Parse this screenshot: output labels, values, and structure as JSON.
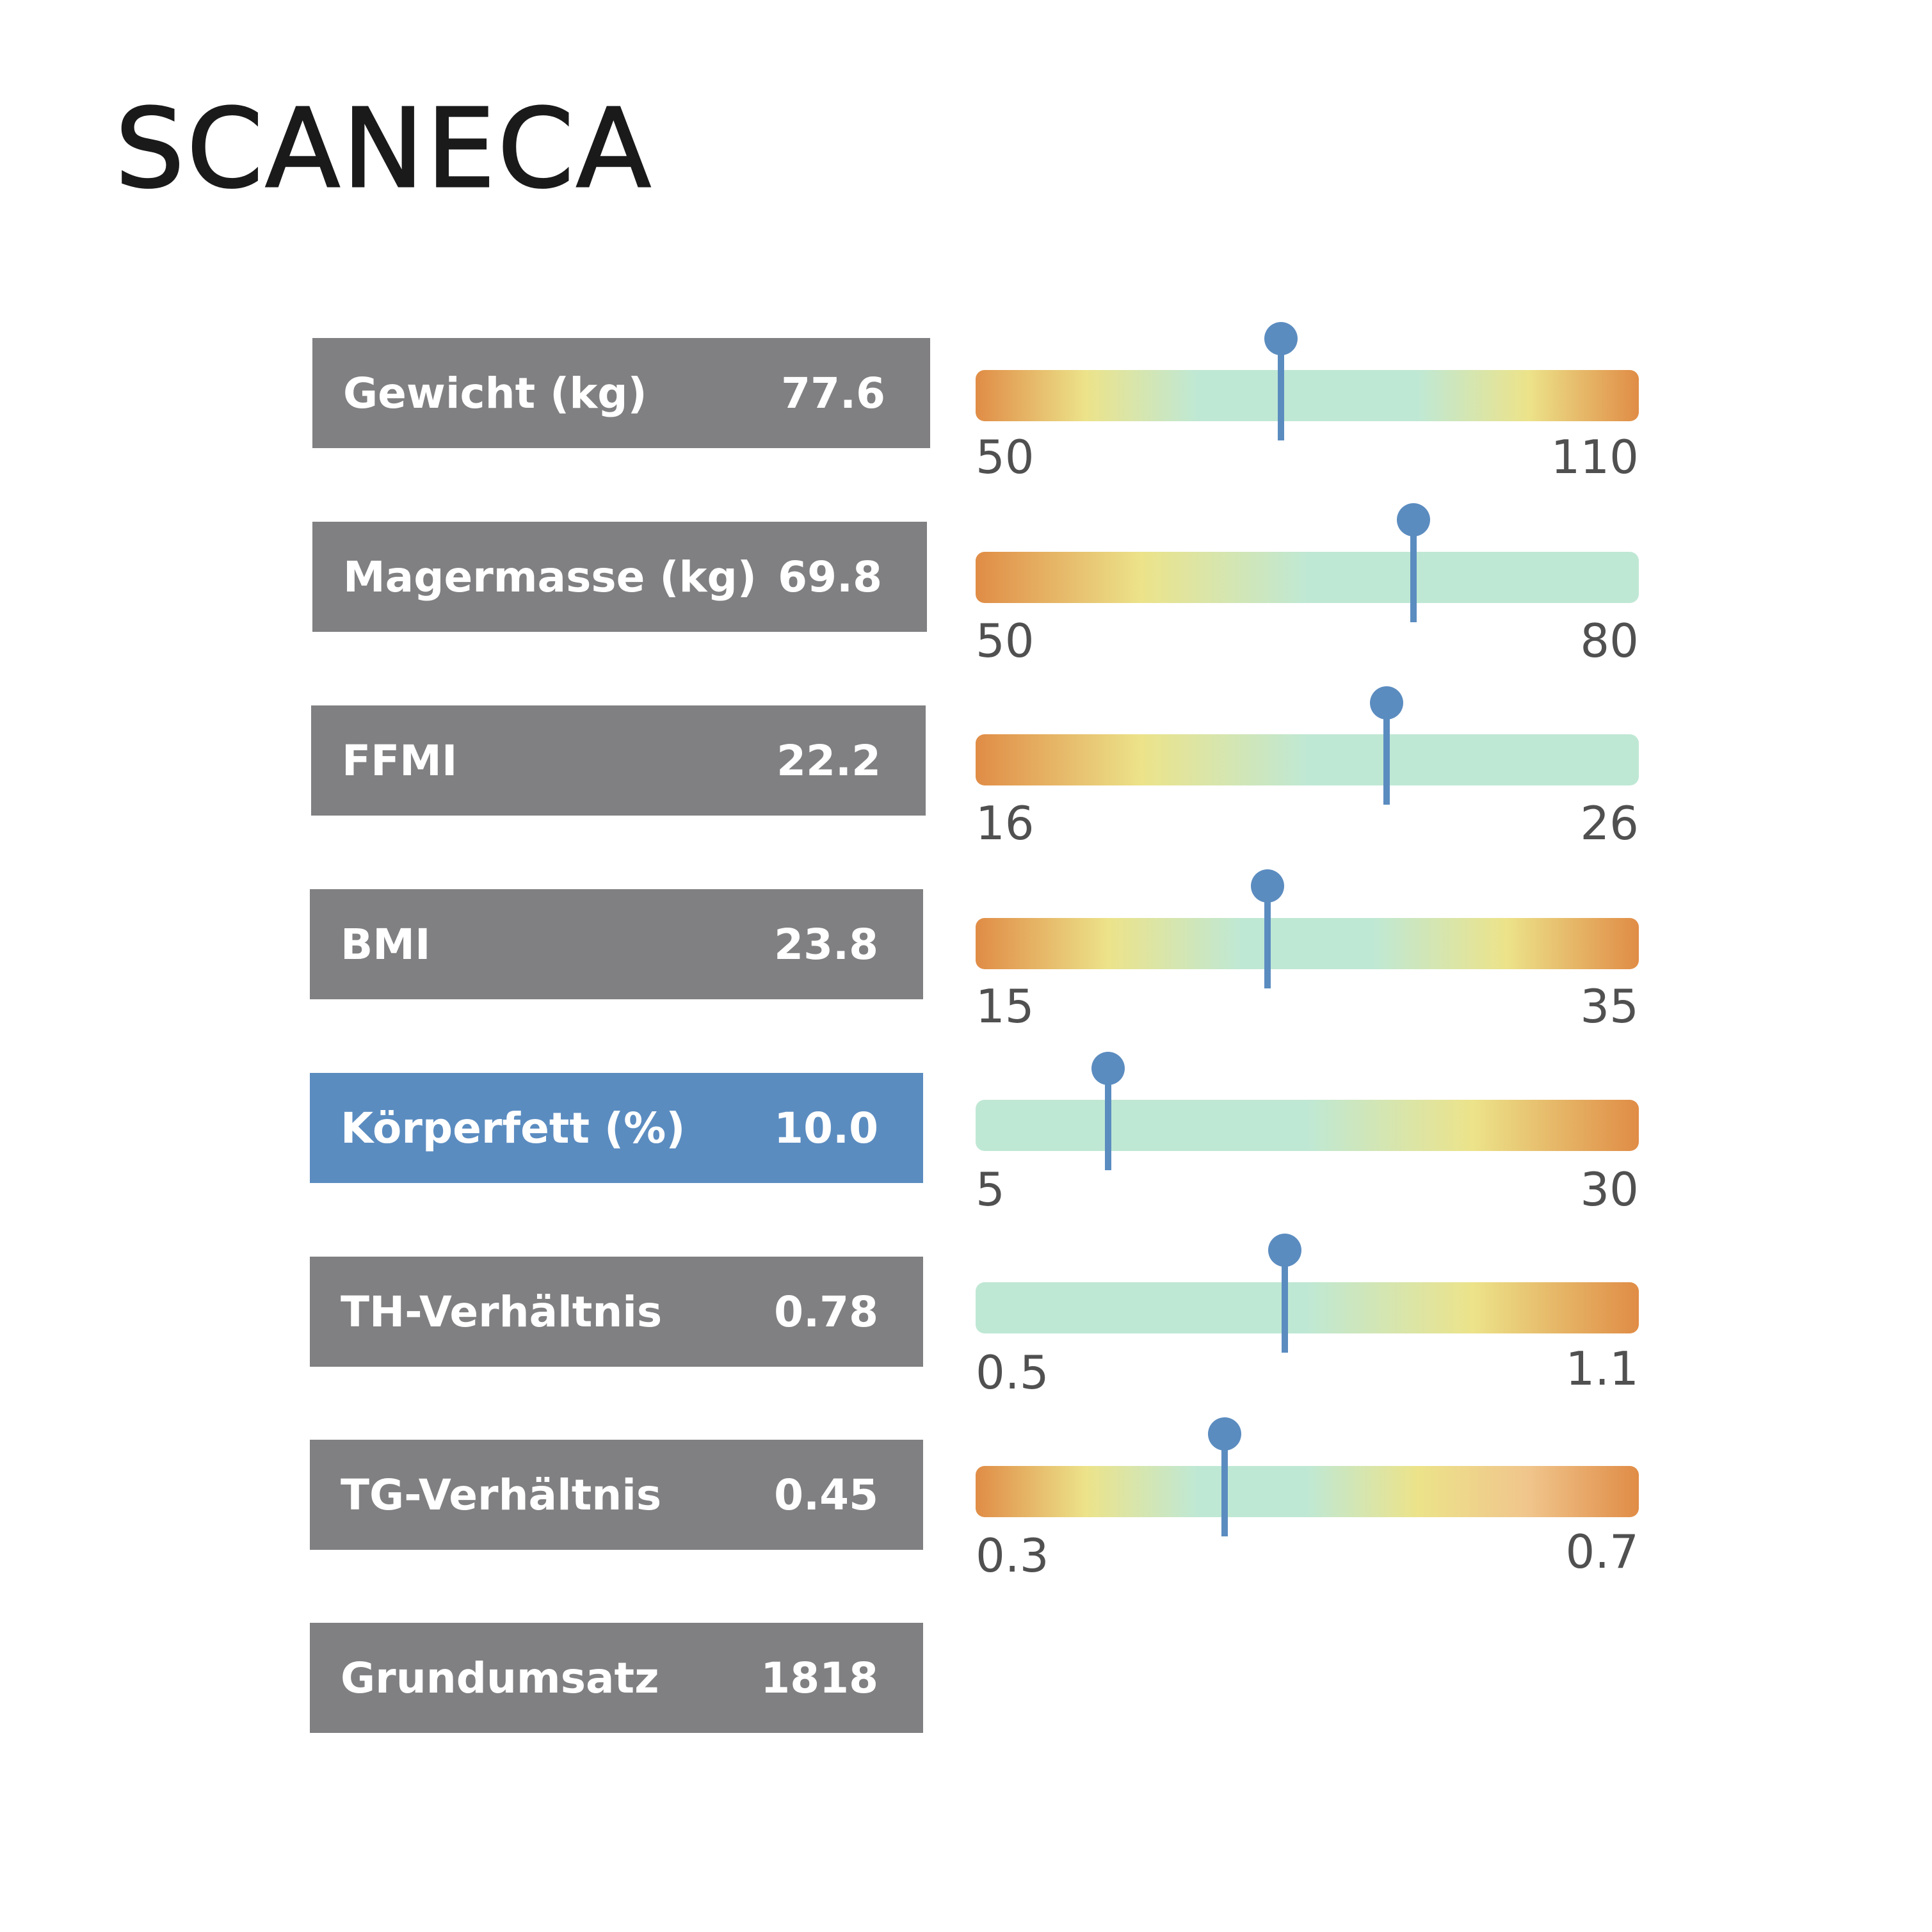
{
  "brand": {
    "logo_text": "SCANECA"
  },
  "colors": {
    "box_default": "#807f81",
    "box_highlight": "#5b8cc0",
    "marker": "#5b8cc0",
    "range_good": "#bfe8d4",
    "range_warn": "#ece38a",
    "range_bad": "#e08c46"
  },
  "metrics": [
    {
      "label": "Gewicht (kg)",
      "value": "77.6",
      "highlighted": false,
      "scale": {
        "min": 50,
        "max": 110,
        "min_label": "50",
        "max_label": "110",
        "value": 77.6,
        "gradient": [
          "#e08c46",
          "#ece38a",
          "#bfe8d4",
          "#bfe8d4",
          "#bfe8d4",
          "#ece38a",
          "#e08c46"
        ]
      }
    },
    {
      "label": "Magermasse (kg)",
      "value": "69.8",
      "highlighted": false,
      "scale": {
        "min": 50,
        "max": 80,
        "min_label": "50",
        "max_label": "80",
        "value": 69.8,
        "gradient": [
          "#e08c46",
          "#ece38a",
          "#bfe8d4",
          "#bfe8d4",
          "#bfe8d4"
        ]
      }
    },
    {
      "label": "FFMI",
      "value": "22.2",
      "highlighted": false,
      "scale": {
        "min": 16,
        "max": 26,
        "min_label": "16",
        "max_label": "26",
        "value": 22.2,
        "gradient": [
          "#e08c46",
          "#ece38a",
          "#bfe8d4",
          "#bfe8d4",
          "#bfe8d4"
        ]
      }
    },
    {
      "label": "BMI",
      "value": "23.8",
      "highlighted": false,
      "scale": {
        "min": 15,
        "max": 35,
        "min_label": "15",
        "max_label": "35",
        "value": 23.8,
        "gradient": [
          "#e08c46",
          "#ece38a",
          "#bfe8d4",
          "#bfe8d4",
          "#ece38a",
          "#e08c46"
        ]
      }
    },
    {
      "label": "Körperfett (%)",
      "value": "10.0",
      "highlighted": true,
      "scale": {
        "min": 5,
        "max": 30,
        "min_label": "5",
        "max_label": "30",
        "value": 10.0,
        "gradient": [
          "#bfe8d4",
          "#bfe8d4",
          "#bfe8d4",
          "#ece38a",
          "#e08c46"
        ]
      }
    },
    {
      "label": "TH-Verhältnis",
      "value": "0.78",
      "highlighted": false,
      "scale": {
        "min": 0.5,
        "max": 1.1,
        "min_label": "0.5",
        "max_label": "1.1",
        "value": 0.78,
        "gradient": [
          "#bfe8d4",
          "#bfe8d4",
          "#bfe8d4",
          "#ece38a",
          "#e08c46"
        ]
      }
    },
    {
      "label": "TG-Verhältnis",
      "value": "0.45",
      "highlighted": false,
      "scale": {
        "min": 0.3,
        "max": 0.7,
        "min_label": "0.3",
        "max_label": "0.7",
        "value": 0.45,
        "gradient": [
          "#e08c46",
          "#ece38a",
          "#bfe8d4",
          "#bfe8d4",
          "#ece38a",
          "#f0c58c",
          "#e08c46"
        ]
      }
    },
    {
      "label": "Grundumsatz",
      "value": "1818",
      "highlighted": false,
      "scale": null
    }
  ]
}
